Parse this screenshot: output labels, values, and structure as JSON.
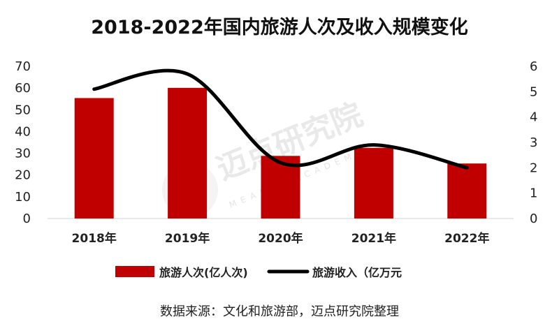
{
  "chart_data": {
    "type": "bar+line",
    "title": "2018-2022年国内旅游人次及收入规模变化",
    "categories": [
      "2018年",
      "2019年",
      "2020年",
      "2021年",
      "2022年"
    ],
    "series": [
      {
        "name": "旅游人次(亿人次)",
        "type": "bar",
        "axis": "left",
        "color": "#c00000",
        "values": [
          55.4,
          60.1,
          28.8,
          32.5,
          25.3
        ]
      },
      {
        "name": "旅游收入（亿万元",
        "type": "line",
        "axis": "right",
        "color": "#000000",
        "values": [
          5.1,
          5.7,
          2.2,
          2.9,
          2.0
        ]
      }
    ],
    "y_left": {
      "min": 0,
      "max": 70,
      "ticks": [
        0,
        10,
        20,
        30,
        40,
        50,
        60,
        70
      ]
    },
    "y_right": {
      "min": 0,
      "max": 6,
      "ticks": [
        0,
        1,
        2,
        3,
        4,
        5,
        6
      ]
    },
    "legend_position": "bottom",
    "grid": false
  },
  "source": "数据来源：文化和旅游部，迈点研究院整理",
  "watermark": {
    "text": "迈点研究院",
    "sub": "MEADIN ACADEMY"
  }
}
